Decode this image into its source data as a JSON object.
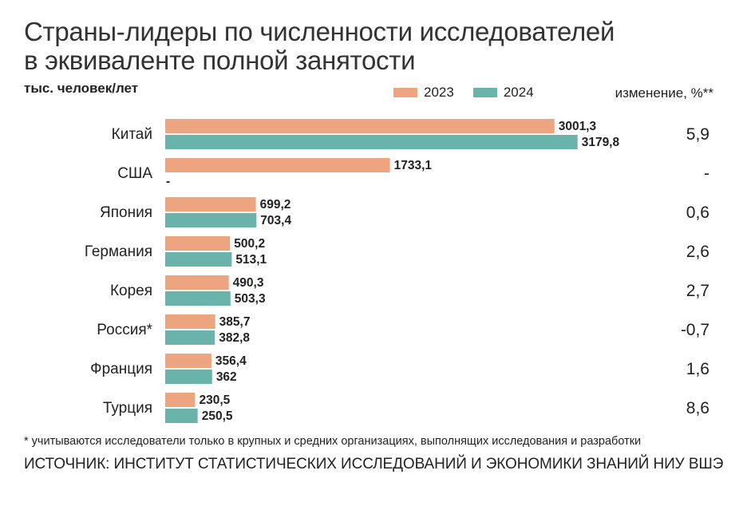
{
  "title_line1": "Страны-лидеры по численности исследователей",
  "title_line2": "в эквиваленте полной занятости",
  "unit": "тыс. человек/лет",
  "change_header": "изменение, %**",
  "footnote": "* учитываются исследователи только в крупных и средних организациях, выполнящих исследования и разработки",
  "source": "ИСТОЧНИК: ИНСТИТУТ СТАТИСТИЧЕСКИХ ИССЛЕДОВАНИЙ И ЭКОНОМИКИ ЗНАНИЙ НИУ ВШЭ",
  "colors": {
    "y2023": "#eca57e",
    "y2024": "#6ab3ab"
  },
  "chart_data": {
    "type": "bar",
    "orientation": "horizontal",
    "categories": [
      "Китай",
      "США",
      "Япония",
      "Германия",
      "Корея",
      "Россия*",
      "Франция",
      "Турция"
    ],
    "series": [
      {
        "name": "2023",
        "values": [
          3001.3,
          1733.1,
          699.2,
          500.2,
          490.3,
          385.7,
          356.4,
          230.5
        ],
        "labels": [
          "3001,3",
          "1733,1",
          "699,2",
          "500,2",
          "490,3",
          "385,7",
          "356,4",
          "230,5"
        ]
      },
      {
        "name": "2024",
        "values": [
          3179.8,
          null,
          703.4,
          513.1,
          503.3,
          382.8,
          362,
          250.5
        ],
        "labels": [
          "3179,8",
          "-",
          "703,4",
          "513,1",
          "503,3",
          "382,8",
          "362",
          "250,5"
        ]
      }
    ],
    "change": [
      "5,9",
      "-",
      "0,6",
      "2,6",
      "2,7",
      "-0,7",
      "1,6",
      "8,6"
    ],
    "legend_position": "top-right",
    "grid": false
  }
}
